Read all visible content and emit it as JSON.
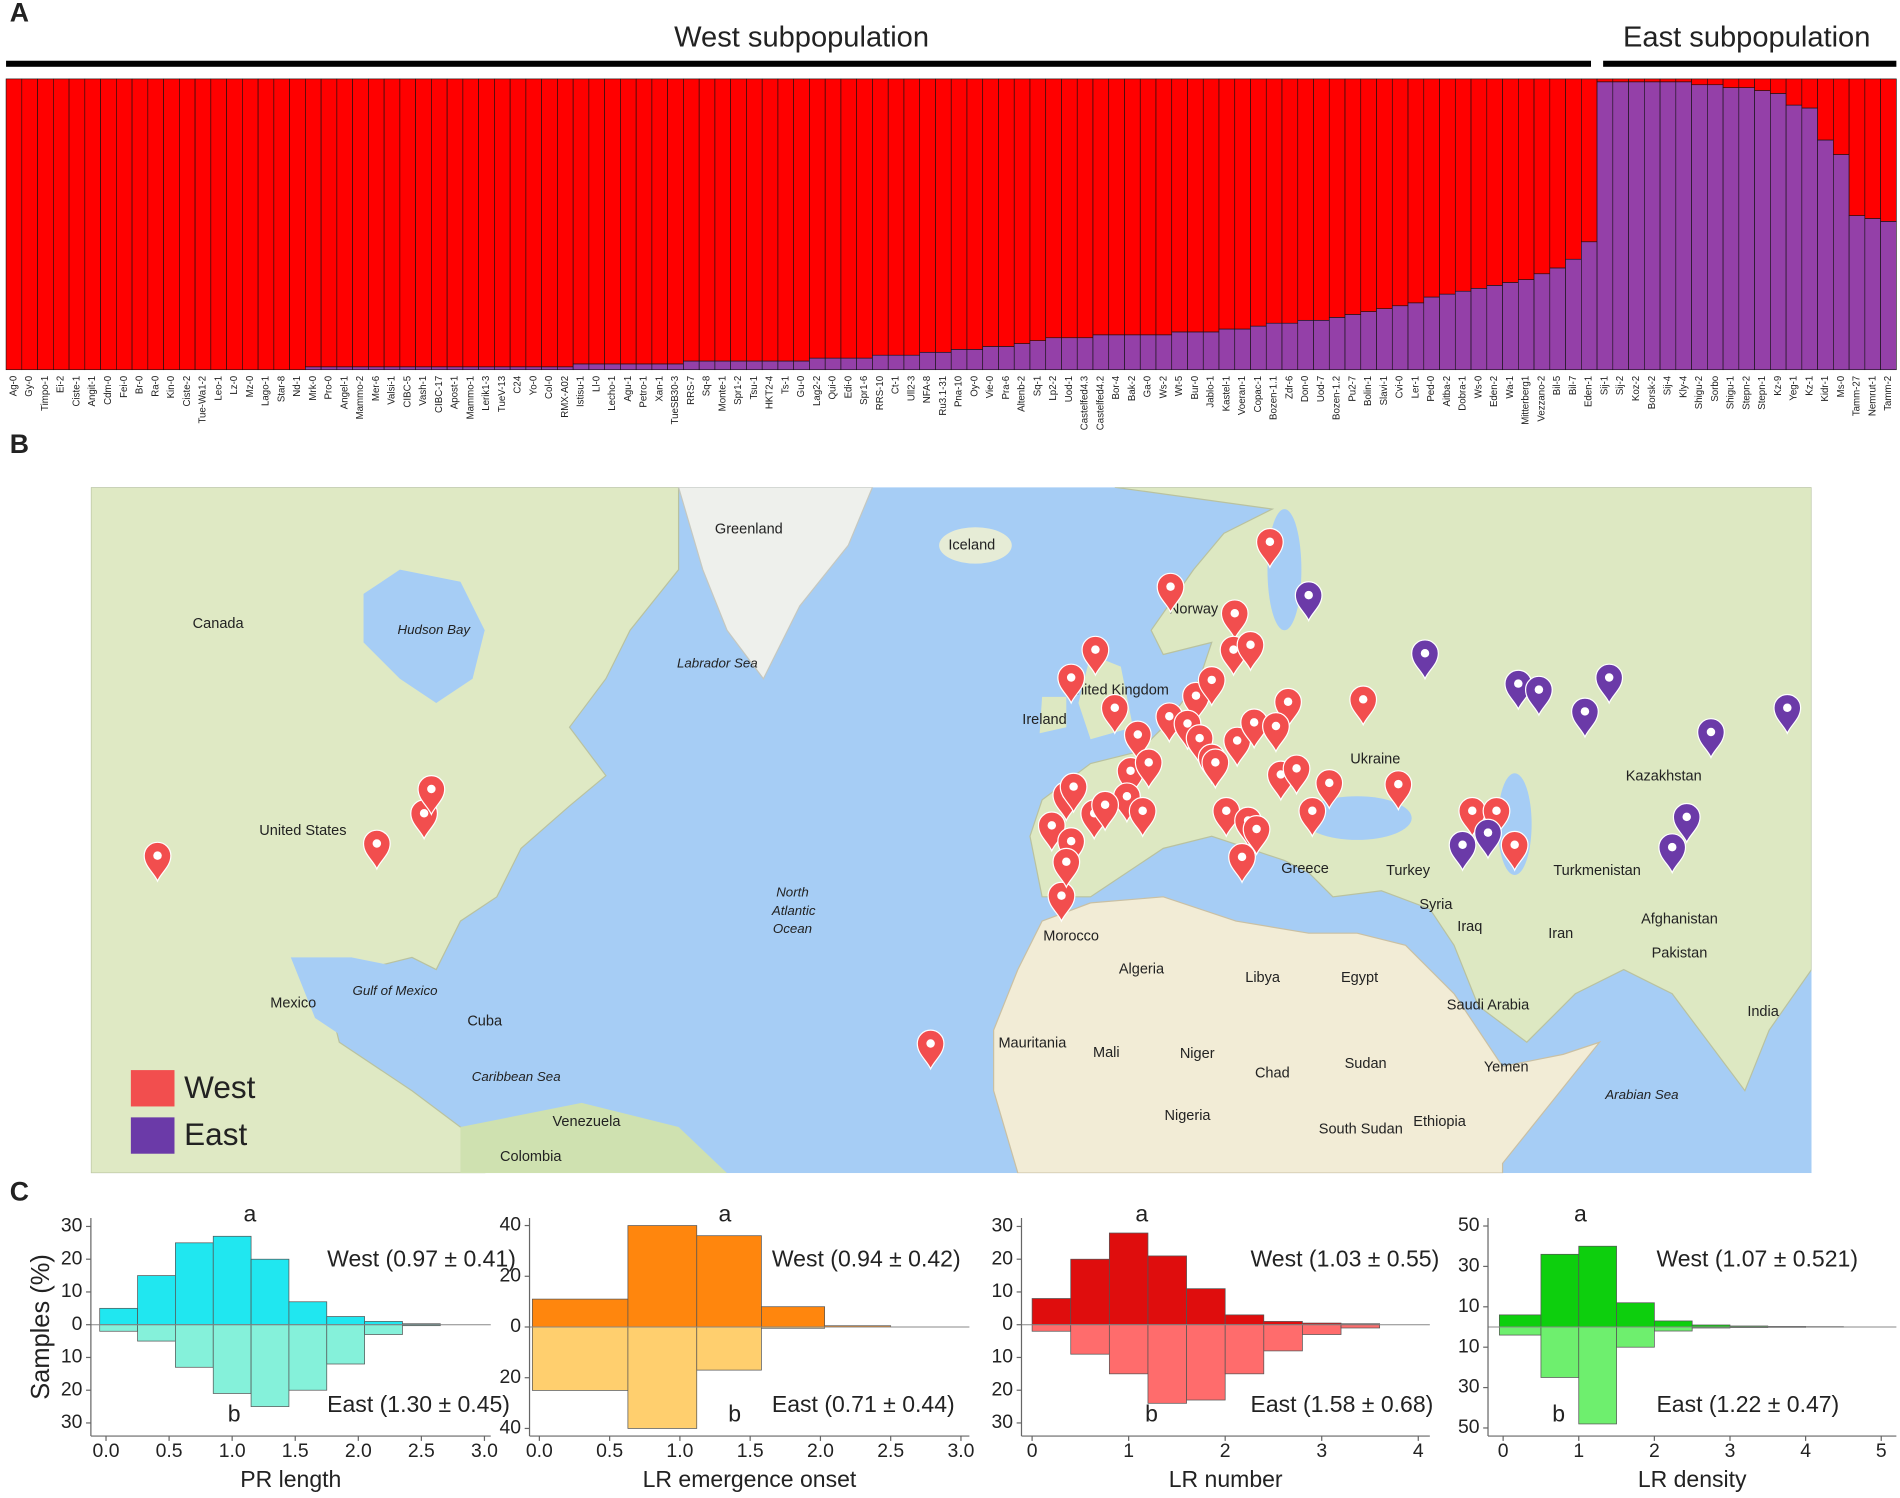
{
  "panels": [
    "A",
    "B",
    "C"
  ],
  "shared_y_label": "Samples (%)",
  "map": {
    "legend": [
      {
        "label": "West",
        "color": "#f24e4e"
      },
      {
        "label": "East",
        "color": "#6b3aa8"
      }
    ],
    "labels": [
      "Greenland",
      "Iceland",
      "Canada",
      "Hudson Bay",
      "Labrador Sea",
      "United States",
      "Mexico",
      "North",
      "Atlantic",
      "Ocean",
      "Ireland",
      "United Kingdom",
      "Norway",
      "Ukraine",
      "Kazakhstan",
      "Turkey",
      "Turkmenistan",
      "Iran",
      "Afghanistan",
      "Pakistan",
      "India",
      "Iraq",
      "Syria",
      "Greece",
      "Morocco",
      "Algeria",
      "Libya",
      "Egypt",
      "Saudi Arabia",
      "Mauritania",
      "Mali",
      "Niger",
      "Chad",
      "Sudan",
      "Nigeria",
      "Ethiopia",
      "South Sudan",
      "Yemen",
      "Venezuela",
      "Colombia",
      "Cuba",
      "Gulf of Mexico",
      "Caribbean Sea",
      "Arabian Sea"
    ]
  },
  "chart_data": [
    {
      "type": "stacked_bar",
      "group_labels": [
        "West subpopulation",
        "East subpopulation"
      ],
      "ylim": [
        0,
        100
      ],
      "categories": [
        "Ag-0",
        "Gy-0",
        "Timpo-1",
        "Ei-2",
        "Ciste-1",
        "Angit-1",
        "Cdm-0",
        "Fei-0",
        "Br-0",
        "Ra-0",
        "Kin-0",
        "Ciste-2",
        "Tue-Wa1-2",
        "Leo-1",
        "Lz-0",
        "Mz-0",
        "Lago-1",
        "Star-8",
        "Nd-1",
        "Mrk-0",
        "Pro-0",
        "Angel-1",
        "Mammo-2",
        "Mer-6",
        "Valsi-1",
        "CIBC-5",
        "Vash-1",
        "CIBC-17",
        "Apost-1",
        "Mammo-1",
        "Lerik1-3",
        "TueV-13",
        "C24",
        "Yo-0",
        "Col-0",
        "RMX-A02",
        "Istisu-1",
        "Ll-0",
        "Lecho-1",
        "Agu-1",
        "Petro-1",
        "Xan-1",
        "TueSB30-3",
        "RRS-7",
        "Sq-8",
        "Monte-1",
        "Spr1-2",
        "Tsu-1",
        "HKT2-4",
        "Ts-1",
        "Gu-0",
        "Lag2-2",
        "Qui-0",
        "Edi-0",
        "Spr1-6",
        "RRS-10",
        "Ct-1",
        "Ull2-3",
        "NFA-8",
        "Ru3.1-31",
        "Pna-10",
        "Oy-0",
        "Vie-0",
        "Pra-6",
        "Altenb-2",
        "Sq-1",
        "Lp2-2",
        "Uod-1",
        "Castelfed4.3",
        "Castelfed4.2",
        "Bor-4",
        "Bak-2",
        "Ga-0",
        "Ws-2",
        "Wt-5",
        "Bur-0",
        "Jablo-1",
        "Kastel-1",
        "Voeran-1",
        "Copac-1",
        "Bozen-1.1",
        "Zdr-6",
        "Don-0",
        "Uod-7",
        "Bozen-1.2",
        "Pu2-7",
        "Bolin-1",
        "Slavi-1",
        "Cvi-0",
        "Ler-1",
        "Ped-0",
        "Aitba-2",
        "Dobra-1",
        "Ws-0",
        "Eden-2",
        "Wa-1",
        "Mitterberg1",
        "Vezzano-2",
        "Bil-5",
        "Bil-7",
        "Eden-1",
        "Sij-1",
        "Sij-2",
        "Koz-2",
        "Borsk-2",
        "Sij-4",
        "Kly-4",
        "Shigu-2",
        "Sorbo",
        "Shigu-1",
        "Stepn-2",
        "Stepn-1",
        "Kz-9",
        "Yeg-1",
        "Kz-1",
        "Kidr-1",
        "Ms-0",
        "Tamm-27",
        "Nemrut-1",
        "Tamm-2"
      ],
      "series": [
        {
          "color": "#9440a8",
          "values": [
            0,
            0,
            0,
            0,
            0,
            0,
            0,
            0,
            0,
            0,
            0,
            0,
            0,
            0,
            0,
            0,
            0,
            0,
            0,
            1,
            1,
            1,
            1,
            1,
            1,
            1,
            1,
            1,
            1,
            1,
            1,
            1,
            1,
            1,
            1,
            1,
            2,
            2,
            2,
            2,
            2,
            2,
            2,
            3,
            3,
            3,
            3,
            3,
            3,
            3,
            3,
            4,
            4,
            4,
            4,
            5,
            5,
            5,
            6,
            6,
            7,
            7,
            8,
            8,
            9,
            10,
            11,
            11,
            11,
            12,
            12,
            12,
            12,
            12,
            13,
            13,
            13,
            14,
            14,
            15,
            16,
            16,
            17,
            17,
            18,
            19,
            20,
            21,
            22,
            23,
            25,
            26,
            27,
            28,
            29,
            30,
            31,
            33,
            35,
            38,
            44,
            99,
            99,
            99,
            99,
            99,
            99,
            98,
            98,
            97,
            97,
            96,
            95,
            91,
            90,
            79,
            74,
            53,
            52,
            51
          ]
        },
        {
          "color": "#ff0000",
          "values": [
            100,
            100,
            100,
            100,
            100,
            100,
            100,
            100,
            100,
            100,
            100,
            100,
            100,
            100,
            100,
            100,
            100,
            100,
            100,
            99,
            99,
            99,
            99,
            99,
            99,
            99,
            99,
            99,
            99,
            99,
            99,
            99,
            99,
            99,
            99,
            99,
            98,
            98,
            98,
            98,
            98,
            98,
            98,
            97,
            97,
            97,
            97,
            97,
            97,
            97,
            97,
            96,
            96,
            96,
            96,
            95,
            95,
            95,
            94,
            94,
            93,
            93,
            92,
            92,
            91,
            90,
            89,
            89,
            89,
            88,
            88,
            88,
            88,
            88,
            87,
            87,
            87,
            86,
            86,
            85,
            84,
            84,
            83,
            83,
            82,
            81,
            80,
            79,
            78,
            77,
            75,
            74,
            73,
            72,
            71,
            70,
            69,
            67,
            65,
            62,
            56,
            1,
            1,
            1,
            1,
            1,
            1,
            2,
            2,
            3,
            3,
            4,
            5,
            9,
            10,
            21,
            26,
            47,
            48,
            49
          ]
        }
      ]
    },
    {
      "type": "histogram",
      "x_label": "PR length",
      "annotations": [
        "West (0.97 ± 0.41)",
        "East (1.30 ± 0.45)",
        "a",
        "b"
      ],
      "bins": [
        -0.05,
        0.25,
        0.55,
        0.85,
        1.15,
        1.45,
        1.75,
        2.05,
        2.35,
        2.65
      ],
      "series": [
        {
          "color": "#14e6ef",
          "values": [
            5,
            15,
            25,
            27,
            20,
            7,
            2.5,
            1,
            0.3
          ]
        },
        {
          "color": "#7ef0d8",
          "values": [
            2,
            5,
            13,
            21,
            25,
            20,
            12,
            3,
            0.3
          ]
        }
      ],
      "xlim": [
        -0.12,
        3.05
      ],
      "xticks": [
        {
          "value": 0,
          "label": "0.0"
        },
        {
          "value": 0.5,
          "label": "0.5"
        },
        {
          "value": 1,
          "label": "1.0"
        },
        {
          "value": 1.5,
          "label": "1.5"
        },
        {
          "value": 2,
          "label": "2.0"
        },
        {
          "value": 2.5,
          "label": "2.5"
        },
        {
          "value": 3,
          "label": "3.0"
        }
      ],
      "ylim": [
        -34,
        32.6
      ],
      "yticks": [
        30,
        20,
        10,
        0,
        {
          "value": -10,
          "label": "10"
        },
        {
          "value": -20,
          "label": "20"
        },
        {
          "value": -30,
          "label": "30"
        }
      ]
    },
    {
      "type": "histogram",
      "x_label": "LR emergence onset",
      "annotations": [
        "West (0.94 ± 0.42)",
        "East (0.71 ± 0.44)",
        "a",
        "b"
      ],
      "bins": [
        -0.05,
        0.63,
        1.12,
        1.58,
        2.03,
        2.5
      ],
      "series": [
        {
          "color": "#ff8000",
          "values": [
            11,
            40,
            36,
            8,
            0.5
          ]
        },
        {
          "color": "#ffcc66",
          "values": [
            25,
            40,
            17,
            0.5,
            0
          ]
        }
      ],
      "xlim": [
        -0.07,
        3.06
      ],
      "xticks": [
        {
          "value": 0,
          "label": "0.0"
        },
        {
          "value": 0.5,
          "label": "0.5"
        },
        {
          "value": 1,
          "label": "1.0"
        },
        {
          "value": 1.5,
          "label": "1.5"
        },
        {
          "value": 2,
          "label": "2.0"
        },
        {
          "value": 2.5,
          "label": "2.5"
        },
        {
          "value": 3,
          "label": "3.0"
        }
      ],
      "ylim": [
        -43,
        43
      ],
      "yticks": [
        40,
        20,
        0,
        {
          "value": -20,
          "label": "20"
        },
        {
          "value": -40,
          "label": "40"
        }
      ]
    },
    {
      "type": "histogram",
      "x_label": "LR number",
      "annotations": [
        "West (1.03 ± 0.55)",
        "East (1.58 ± 0.68)",
        "a",
        "b"
      ],
      "bins": [
        0,
        0.4,
        0.8,
        1.2,
        1.6,
        2.0,
        2.4,
        2.8,
        3.2,
        3.6
      ],
      "series": [
        {
          "color": "#dd0000",
          "values": [
            8,
            20,
            28,
            21,
            11,
            3,
            1,
            0.5,
            0.3
          ]
        },
        {
          "color": "#ff6464",
          "values": [
            2,
            9,
            15,
            24,
            23,
            15,
            8,
            3,
            1
          ]
        }
      ],
      "xlim": [
        -0.11,
        4.12
      ],
      "xticks": [
        0,
        1,
        2,
        3,
        4
      ],
      "ylim": [
        -34,
        32.6
      ],
      "yticks": [
        30,
        20,
        10,
        0,
        {
          "value": -10,
          "label": "10"
        },
        {
          "value": -20,
          "label": "20"
        },
        {
          "value": -30,
          "label": "30"
        }
      ]
    },
    {
      "type": "histogram",
      "x_label": "LR density",
      "annotations": [
        "West (1.07 ± 0.521)",
        "East (1.22 ± 0.47)",
        "a",
        "b"
      ],
      "bins": [
        -0.05,
        0.5,
        1.0,
        1.5,
        2.0,
        2.5,
        3.0,
        3.5,
        4.0,
        4.5
      ],
      "series": [
        {
          "color": "#00cc00",
          "values": [
            6,
            36,
            40,
            12,
            3,
            1,
            0.5,
            0.3,
            0.2
          ]
        },
        {
          "color": "#66ee66",
          "values": [
            4,
            25,
            48,
            10,
            2,
            0.5,
            0.3,
            0.2,
            0.1
          ]
        }
      ],
      "xlim": [
        -0.2,
        5.2
      ],
      "xticks": [
        0,
        1,
        2,
        3,
        4,
        5
      ],
      "ylim": [
        -54,
        54
      ],
      "yticks": [
        50,
        30,
        10,
        {
          "value": -10,
          "label": "10"
        },
        {
          "value": -30,
          "label": "30"
        },
        {
          "value": -50,
          "label": "50"
        }
      ]
    }
  ]
}
